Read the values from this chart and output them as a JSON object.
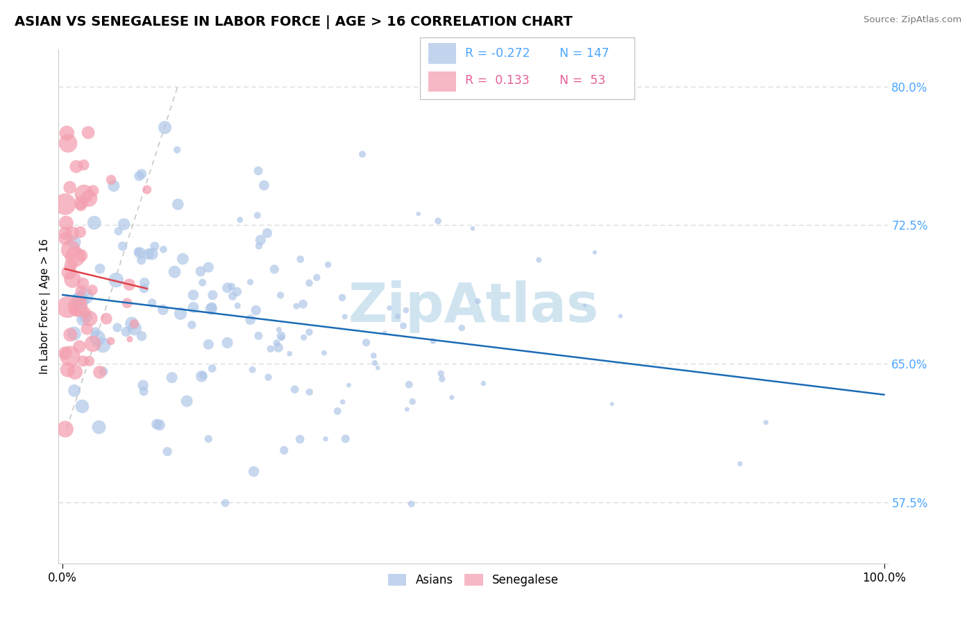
{
  "title": "ASIAN VS SENEGALESE IN LABOR FORCE | AGE > 16 CORRELATION CHART",
  "source_text": "Source: ZipAtlas.com",
  "ylabel": "In Labor Force | Age > 16",
  "asian_color": "#aec6e8",
  "senegalese_color": "#f4a0b0",
  "asian_line_color": "#1a6bb5",
  "senegalese_line_color": "#e0404a",
  "watermark": "ZipAtlas",
  "watermark_color": "#d0e4f0",
  "ytick_color": "#4da6ff",
  "title_fontsize": 14,
  "legend_r_color": "#4da6ff",
  "legend_sene_color": "#e8609a",
  "asian_seed": 42,
  "sene_seed": 77
}
